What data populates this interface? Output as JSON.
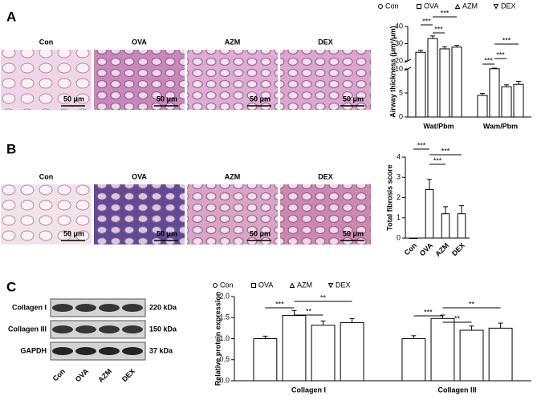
{
  "panel_labels": [
    "A",
    "B",
    "C"
  ],
  "histology_A": {
    "labels": [
      "Con",
      "OVA",
      "AZM",
      "DEX"
    ],
    "scale_bar": "50 μm"
  },
  "histology_B": {
    "labels": [
      "Con",
      "OVA",
      "AZM",
      "DEX"
    ],
    "scale_bar": "50 μm"
  },
  "blot": {
    "rows": [
      "Collagen I",
      "Collagen III",
      "GAPDH"
    ],
    "sizes": [
      "220 kDa",
      "150 kDa",
      "37 kDa"
    ],
    "lanes": [
      "Con",
      "OVA",
      "AZM",
      "DEX"
    ]
  },
  "chart_data": [
    {
      "type": "bar",
      "y_label": "Airway thickness (μm²/μm)",
      "categories": [
        "Wat/Pbm",
        "Wam/Pbm"
      ],
      "series": [
        {
          "name": "Con",
          "color": "#ffffff",
          "marker": "circle",
          "values": [
            25,
            4.5
          ],
          "errors": [
            1.2,
            0.4
          ]
        },
        {
          "name": "OVA",
          "color": "#ffffff",
          "marker": "square",
          "values": [
            33,
            10.2
          ],
          "errors": [
            1.5,
            0.8
          ]
        },
        {
          "name": "AZM",
          "color": "#ffffff",
          "marker": "triangle",
          "values": [
            27,
            6.3
          ],
          "errors": [
            1.2,
            0.4
          ]
        },
        {
          "name": "DEX",
          "color": "#ffffff",
          "marker": "triangle-down",
          "values": [
            28,
            6.8
          ],
          "errors": [
            1.0,
            0.6
          ]
        }
      ],
      "ylim": [
        0,
        40
      ],
      "ybreak": [
        10,
        20
      ],
      "yticks": [
        0,
        5,
        10,
        20,
        30,
        40
      ],
      "significance": [
        "***",
        "***",
        "***",
        "***",
        "***",
        "***"
      ]
    },
    {
      "type": "bar",
      "y_label": "Total fibrosis score",
      "categories": [
        "Con",
        "OVA",
        "AZM",
        "DEX"
      ],
      "values": [
        0,
        2.4,
        1.2,
        1.2
      ],
      "errors": [
        0,
        0.5,
        0.35,
        0.4
      ],
      "color": "#ffffff",
      "ylim": [
        0,
        4
      ],
      "yticks": [
        0,
        1,
        2,
        3,
        4
      ],
      "significance": [
        "***",
        "***",
        "***"
      ]
    },
    {
      "type": "bar",
      "y_label": "Relative protein expression",
      "categories": [
        "Collagen I",
        "Collagen III"
      ],
      "series": [
        {
          "name": "Con",
          "color": "#ffffff",
          "marker": "circle",
          "values": [
            1.0,
            1.0
          ],
          "errors": [
            0.06,
            0.07
          ]
        },
        {
          "name": "OVA",
          "color": "#ffffff",
          "marker": "square",
          "values": [
            1.55,
            1.48
          ],
          "errors": [
            0.12,
            0.08
          ]
        },
        {
          "name": "AZM",
          "color": "#ffffff",
          "marker": "triangle",
          "values": [
            1.32,
            1.2
          ],
          "errors": [
            0.1,
            0.1
          ]
        },
        {
          "name": "DEX",
          "color": "#ffffff",
          "marker": "triangle-down",
          "values": [
            1.38,
            1.25
          ],
          "errors": [
            0.1,
            0.12
          ]
        }
      ],
      "ylim": [
        0,
        2
      ],
      "yticks": [
        {
          "value": 0,
          "label": "0.0"
        },
        0.5,
        {
          "value": 1,
          "label": "1.0"
        },
        1.5,
        {
          "value": 2,
          "label": "2.0"
        }
      ],
      "significance": [
        "***",
        "**",
        "**",
        "***",
        "**",
        "**"
      ]
    }
  ]
}
